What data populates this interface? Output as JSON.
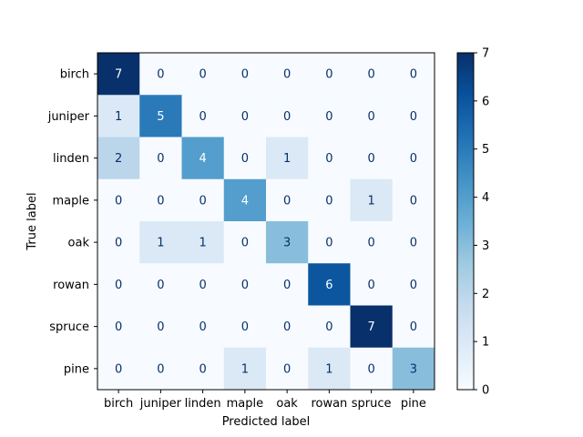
{
  "chart_data": {
    "type": "heatmap",
    "title": "",
    "xlabel": "Predicted label",
    "ylabel": "True label",
    "x_categories": [
      "birch",
      "juniper",
      "linden",
      "maple",
      "oak",
      "rowan",
      "spruce",
      "pine"
    ],
    "y_categories": [
      "birch",
      "juniper",
      "linden",
      "maple",
      "oak",
      "rowan",
      "spruce",
      "pine"
    ],
    "values": [
      [
        7,
        0,
        0,
        0,
        0,
        0,
        0,
        0
      ],
      [
        1,
        5,
        0,
        0,
        0,
        0,
        0,
        0
      ],
      [
        2,
        0,
        4,
        0,
        1,
        0,
        0,
        0
      ],
      [
        0,
        0,
        0,
        4,
        0,
        0,
        1,
        0
      ],
      [
        0,
        1,
        1,
        0,
        3,
        0,
        0,
        0
      ],
      [
        0,
        0,
        0,
        0,
        0,
        6,
        0,
        0
      ],
      [
        0,
        0,
        0,
        0,
        0,
        0,
        7,
        0
      ],
      [
        0,
        0,
        0,
        1,
        0,
        1,
        0,
        3
      ]
    ],
    "colormap": "Blues",
    "vmin": 0,
    "vmax": 7,
    "colorbar_ticks": [
      0,
      1,
      2,
      3,
      4,
      5,
      6,
      7
    ],
    "grid": false
  }
}
